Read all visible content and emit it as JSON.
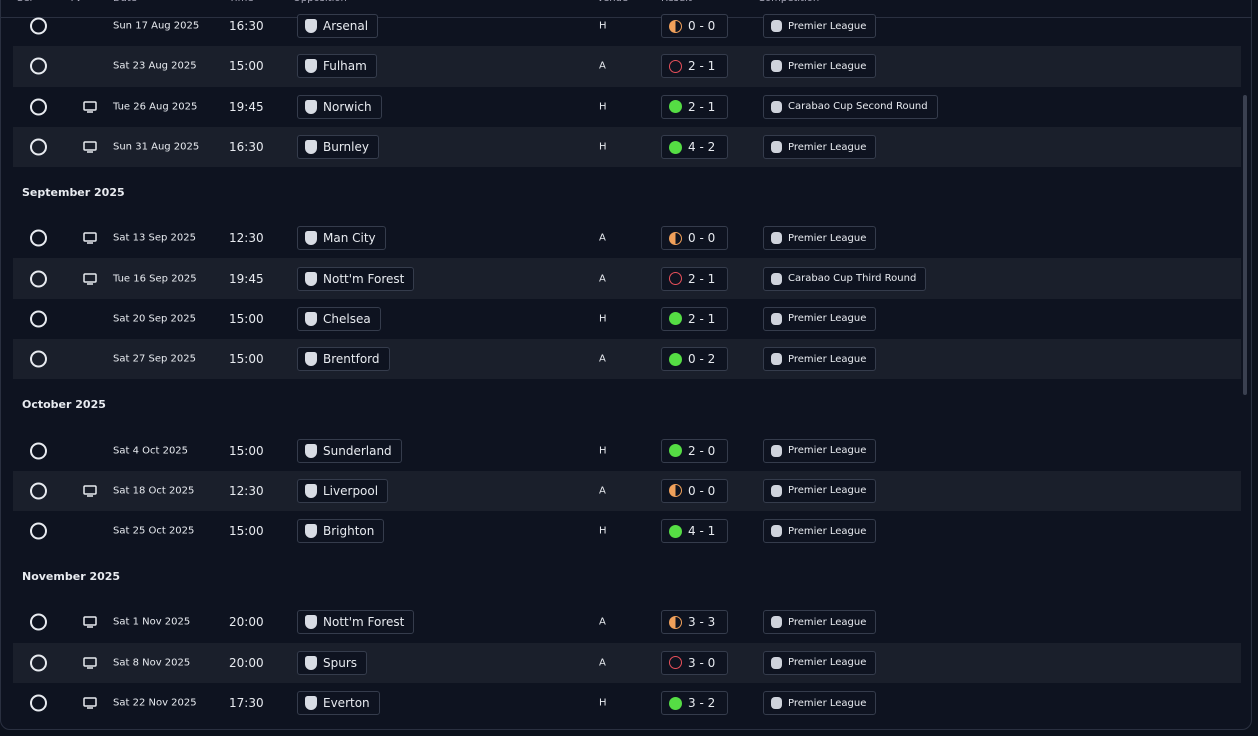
{
  "header": {
    "columns": [
      "Sel",
      "TV",
      "Date",
      "Time",
      "Opposition",
      "Venue",
      "Result",
      "Competition"
    ]
  },
  "groups": [
    {
      "rows": [
        {
          "tv": false,
          "date": "Sun 17 Aug 2025",
          "time": "16:30",
          "opposition": "Arsenal",
          "venue": "H",
          "result": "0 - 0",
          "icon_color": "#f0a05a",
          "competition": "Premier League"
        },
        {
          "tv": false,
          "date": "Sat 23 Aug 2025",
          "time": "15:00",
          "opposition": "Fulham",
          "venue": "A",
          "result": "2 - 1",
          "icon_color": "#e8505a",
          "competition": "Premier League"
        },
        {
          "tv": true,
          "date": "Tue 26 Aug 2025",
          "time": "19:45",
          "opposition": "Norwich",
          "venue": "H",
          "result": "2 - 1",
          "icon_color": "#55dd44",
          "competition": "Carabao Cup Second Round"
        },
        {
          "tv": true,
          "date": "Sun 31 Aug 2025",
          "time": "16:30",
          "opposition": "Burnley",
          "venue": "H",
          "result": "4 - 2",
          "icon_color": "#55dd44",
          "competition": "Premier League"
        }
      ]
    },
    {
      "heading": "September 2025",
      "rows": [
        {
          "tv": true,
          "date": "Sat 13 Sep 2025",
          "time": "12:30",
          "opposition": "Man City",
          "venue": "A",
          "result": "0 - 0",
          "icon_color": "#f0a05a",
          "competition": "Premier League"
        },
        {
          "tv": true,
          "date": "Tue 16 Sep 2025",
          "time": "19:45",
          "opposition": "Nott'm Forest",
          "venue": "A",
          "result": "2 - 1",
          "icon_color": "#e8505a",
          "competition": "Carabao Cup Third Round"
        },
        {
          "tv": false,
          "date": "Sat 20 Sep 2025",
          "time": "15:00",
          "opposition": "Chelsea",
          "venue": "H",
          "result": "2 - 1",
          "icon_color": "#55dd44",
          "competition": "Premier League"
        },
        {
          "tv": false,
          "date": "Sat 27 Sep 2025",
          "time": "15:00",
          "opposition": "Brentford",
          "venue": "A",
          "result": "0 - 2",
          "icon_color": "#55dd44",
          "competition": "Premier League"
        }
      ]
    },
    {
      "heading": "October 2025",
      "rows": [
        {
          "tv": false,
          "date": "Sat 4 Oct 2025",
          "time": "15:00",
          "opposition": "Sunderland",
          "venue": "H",
          "result": "2 - 0",
          "icon_color": "#55dd44",
          "competition": "Premier League"
        },
        {
          "tv": true,
          "date": "Sat 18 Oct 2025",
          "time": "12:30",
          "opposition": "Liverpool",
          "venue": "A",
          "result": "0 - 0",
          "icon_color": "#f0a05a",
          "competition": "Premier League"
        },
        {
          "tv": false,
          "date": "Sat 25 Oct 2025",
          "time": "15:00",
          "opposition": "Brighton",
          "venue": "H",
          "result": "4 - 1",
          "icon_color": "#55dd44",
          "competition": "Premier League"
        }
      ]
    },
    {
      "heading": "November 2025",
      "rows": [
        {
          "tv": true,
          "date": "Sat 1 Nov 2025",
          "time": "20:00",
          "opposition": "Nott'm Forest",
          "venue": "A",
          "result": "3 - 3",
          "icon_color": "#f0a05a",
          "competition": "Premier League"
        },
        {
          "tv": true,
          "date": "Sat 8 Nov 2025",
          "time": "20:00",
          "opposition": "Spurs",
          "venue": "A",
          "result": "3 - 0",
          "icon_color": "#e8505a",
          "competition": "Premier League"
        },
        {
          "tv": true,
          "date": "Sat 22 Nov 2025",
          "time": "17:30",
          "opposition": "Everton",
          "venue": "H",
          "result": "3 - 2",
          "icon_color": "#55dd44",
          "competition": "Premier League"
        }
      ]
    }
  ]
}
